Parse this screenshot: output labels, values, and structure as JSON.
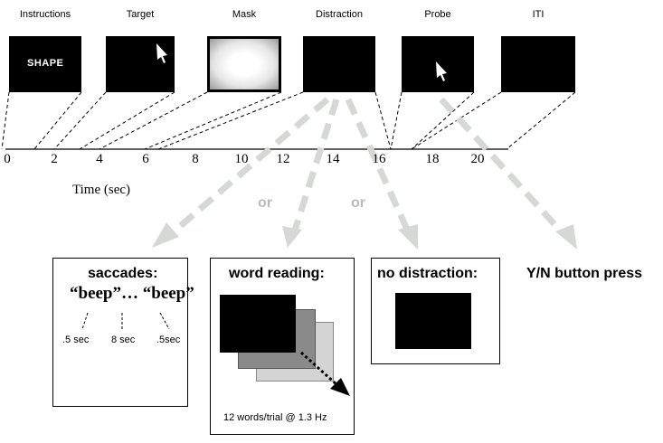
{
  "stages": [
    {
      "label": "Instructions",
      "content": "SHAPE"
    },
    {
      "label": "Target",
      "icon": "arrow-cursor-icon"
    },
    {
      "label": "Mask",
      "icon": "noise-mask"
    },
    {
      "label": "Distraction"
    },
    {
      "label": "Probe",
      "icon": "arrow-cursor-icon"
    },
    {
      "label": "ITI"
    }
  ],
  "axis": {
    "ticks": [
      "0",
      "2",
      "4",
      "6",
      "8",
      "10",
      "12",
      "14",
      "16",
      "18",
      "20"
    ],
    "label": "Time (sec)"
  },
  "or_labels": [
    "or",
    "or"
  ],
  "branches": {
    "saccades": {
      "title": "saccades:",
      "beep_text": "“beep”… “beep”",
      "intervals": [
        ".5 sec",
        "8 sec",
        ".5sec"
      ]
    },
    "word_reading": {
      "title": "word reading:",
      "caption": "12 words/trial @ 1.3 Hz"
    },
    "no_distraction": {
      "title": "no distraction:"
    },
    "response": {
      "title": "Y/N button press"
    }
  },
  "colors": {
    "dash_arrow": "#d5d9d6",
    "or_text": "#b7bdb8",
    "panel": "#000000"
  }
}
